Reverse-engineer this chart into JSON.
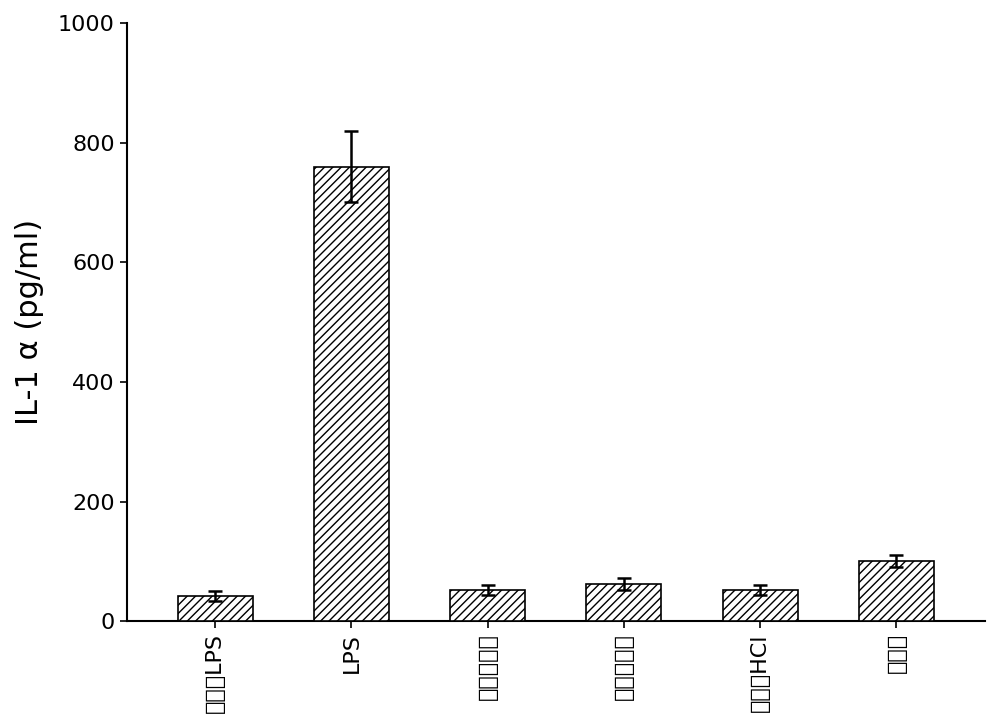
{
  "categories": [
    "不具有LPS",
    "LPS",
    "色醇醋酸酯",
    "酰醇醋酸酯",
    "多巴胺HCl",
    "咋啊酯"
  ],
  "values": [
    42,
    760,
    52,
    62,
    52,
    100
  ],
  "errors": [
    8,
    60,
    8,
    10,
    8,
    10
  ],
  "bar_color": "white",
  "edge_color": "black",
  "hatch": "////",
  "ylabel": "IL-1 α (pg/ml)",
  "ylim": [
    0,
    1000
  ],
  "yticks": [
    0,
    200,
    400,
    600,
    800,
    1000
  ],
  "background_color": "#ffffff",
  "bar_width": 0.55,
  "ylabel_fontsize": 22,
  "tick_fontsize": 16,
  "xtick_fontsize": 16
}
